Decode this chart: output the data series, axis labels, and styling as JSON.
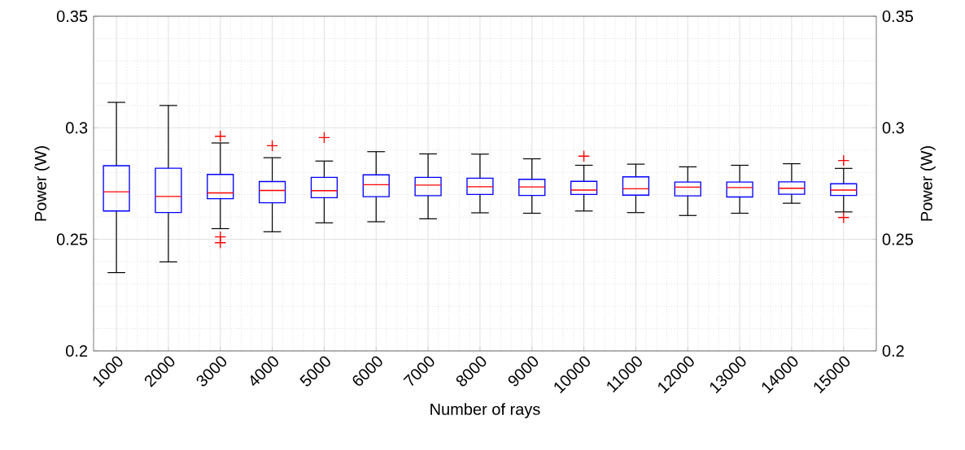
{
  "chart_data": {
    "type": "box",
    "xlabel": "Number of rays",
    "ylabel": "Power (W)",
    "y2label": "Power (W)",
    "categories": [
      "1000",
      "2000",
      "3000",
      "4000",
      "5000",
      "6000",
      "7000",
      "8000",
      "9000",
      "10000",
      "11000",
      "12000",
      "13000",
      "14000",
      "15000"
    ],
    "ylim": [
      0.2,
      0.35
    ],
    "yticks": [
      0.2,
      0.25,
      0.3,
      0.35
    ],
    "y2lim": [
      0.2,
      0.35
    ],
    "y2ticks": [
      0.2,
      0.25,
      0.3,
      0.35
    ],
    "grid": true,
    "series": [
      {
        "color": "#0000ff",
        "boxes": [
          {
            "low": 0.2351,
            "q1": 0.2627,
            "median": 0.2713,
            "q3": 0.283,
            "high": 0.3114
          },
          {
            "low": 0.2399,
            "q1": 0.262,
            "median": 0.2692,
            "q3": 0.2819,
            "high": 0.31
          },
          {
            "low": 0.2548,
            "q1": 0.2682,
            "median": 0.2708,
            "q3": 0.2791,
            "high": 0.2932,
            "outliers": [
              0.2962,
              0.2511,
              0.2485
            ]
          },
          {
            "low": 0.2534,
            "q1": 0.2664,
            "median": 0.2719,
            "q3": 0.2759,
            "high": 0.2866,
            "outliers": [
              0.292
            ]
          },
          {
            "low": 0.2574,
            "q1": 0.2687,
            "median": 0.2718,
            "q3": 0.2778,
            "high": 0.2851,
            "outliers": [
              0.2956
            ]
          },
          {
            "low": 0.2579,
            "q1": 0.2691,
            "median": 0.2745,
            "q3": 0.2789,
            "high": 0.2893
          },
          {
            "low": 0.2592,
            "q1": 0.2696,
            "median": 0.2743,
            "q3": 0.2778,
            "high": 0.2883
          },
          {
            "low": 0.2619,
            "q1": 0.2701,
            "median": 0.2736,
            "q3": 0.2774,
            "high": 0.2882
          },
          {
            "low": 0.2617,
            "q1": 0.2697,
            "median": 0.2735,
            "q3": 0.2769,
            "high": 0.2861
          },
          {
            "low": 0.2627,
            "q1": 0.2701,
            "median": 0.2721,
            "q3": 0.276,
            "high": 0.2832,
            "outliers": [
              0.2873
            ]
          },
          {
            "low": 0.262,
            "q1": 0.2698,
            "median": 0.2727,
            "q3": 0.278,
            "high": 0.2837
          },
          {
            "low": 0.2607,
            "q1": 0.2695,
            "median": 0.2734,
            "q3": 0.2757,
            "high": 0.2825
          },
          {
            "low": 0.2617,
            "q1": 0.269,
            "median": 0.2732,
            "q3": 0.2757,
            "high": 0.2832
          },
          {
            "low": 0.2662,
            "q1": 0.2702,
            "median": 0.2729,
            "q3": 0.2758,
            "high": 0.2839
          },
          {
            "low": 0.2623,
            "q1": 0.2697,
            "median": 0.2721,
            "q3": 0.2749,
            "high": 0.2818,
            "outliers": [
              0.2853,
              0.2598
            ]
          }
        ]
      }
    ]
  }
}
